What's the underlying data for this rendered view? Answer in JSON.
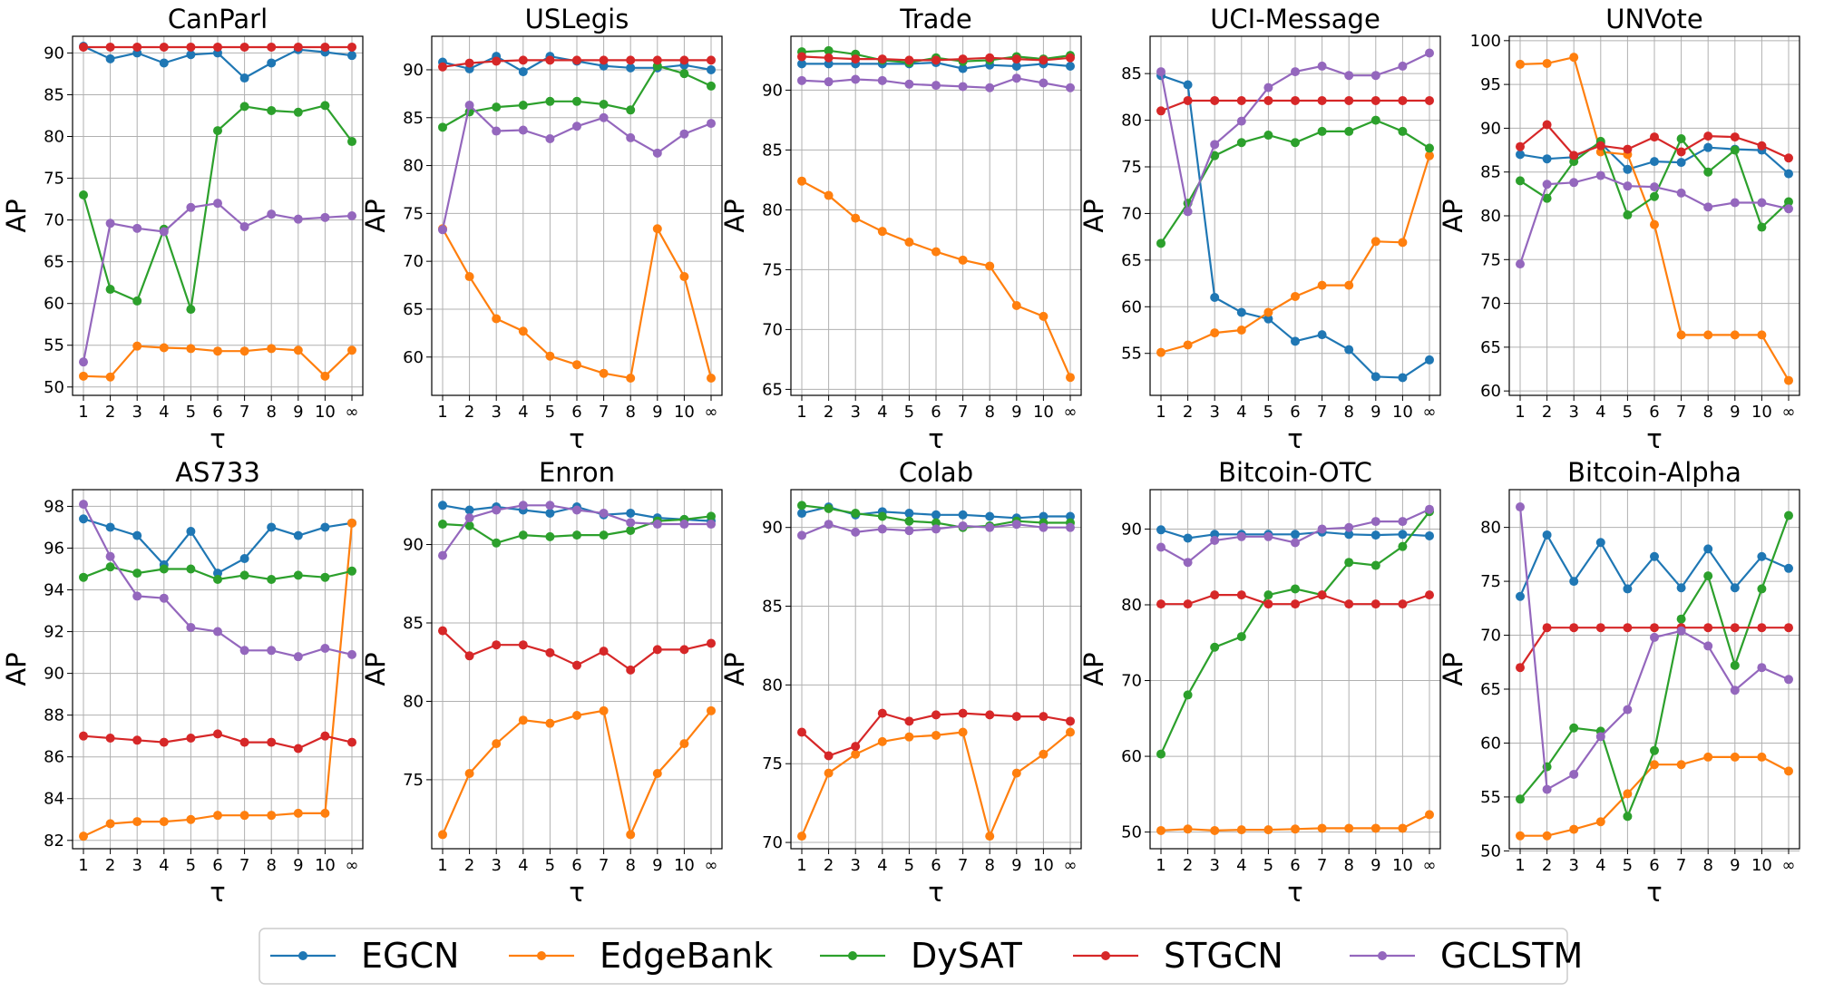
{
  "chart_data": {
    "type": "line",
    "categories": [
      "1",
      "2",
      "3",
      "4",
      "5",
      "6",
      "7",
      "8",
      "9",
      "10",
      "∞"
    ],
    "xlabel": "τ",
    "ylabel": "AP",
    "grid": true,
    "legend_position": "bottom-center",
    "series_names": [
      "EGCN",
      "EdgeBank",
      "DySAT",
      "STGCN",
      "GCLSTM"
    ],
    "series_colors": [
      "#1f77b4",
      "#ff7f0e",
      "#2ca02c",
      "#d62728",
      "#9467bd"
    ],
    "panels": [
      {
        "title": "CanParl",
        "ylim": [
          49,
          92
        ],
        "yticks": [
          50,
          55,
          60,
          65,
          70,
          75,
          80,
          85,
          90
        ],
        "series": [
          [
            90.8,
            89.3,
            90.0,
            88.8,
            89.8,
            90.0,
            87.0,
            88.8,
            90.4,
            90.1,
            89.7
          ],
          [
            51.3,
            51.2,
            54.9,
            54.7,
            54.6,
            54.3,
            54.3,
            54.6,
            54.4,
            51.3,
            54.4
          ],
          [
            73.0,
            61.7,
            60.3,
            68.9,
            59.3,
            80.7,
            83.6,
            83.1,
            82.9,
            83.7,
            79.4
          ],
          [
            90.7,
            90.7,
            90.7,
            90.7,
            90.7,
            90.7,
            90.7,
            90.7,
            90.7,
            90.7,
            90.7
          ],
          [
            53.0,
            69.6,
            69.0,
            68.6,
            71.5,
            72.0,
            69.2,
            70.7,
            70.1,
            70.3,
            70.5
          ]
        ]
      },
      {
        "title": "USLegis",
        "ylim": [
          56,
          93.5
        ],
        "yticks": [
          60,
          65,
          70,
          75,
          80,
          85,
          90
        ],
        "series": [
          [
            90.8,
            90.1,
            91.4,
            89.8,
            91.4,
            90.9,
            90.4,
            90.2,
            90.2,
            90.5,
            90.0
          ],
          [
            73.4,
            68.4,
            64.0,
            62.7,
            60.1,
            59.2,
            58.3,
            57.8,
            73.4,
            68.4,
            57.8
          ],
          [
            84.0,
            85.6,
            86.1,
            86.3,
            86.7,
            86.7,
            86.4,
            85.8,
            90.4,
            89.6,
            88.3
          ],
          [
            90.3,
            90.7,
            90.9,
            91.0,
            91.0,
            91.0,
            91.0,
            91.0,
            91.0,
            91.0,
            91.0
          ],
          [
            73.3,
            86.3,
            83.6,
            83.7,
            82.8,
            84.1,
            85.0,
            82.9,
            81.3,
            83.3,
            84.4
          ]
        ]
      },
      {
        "title": "Trade",
        "ylim": [
          64.5,
          94.5
        ],
        "yticks": [
          65,
          70,
          75,
          80,
          85,
          90
        ],
        "series": [
          [
            92.2,
            92.2,
            92.2,
            92.2,
            92.2,
            92.3,
            91.8,
            92.1,
            92.0,
            92.2,
            92.0
          ],
          [
            82.4,
            81.2,
            79.3,
            78.2,
            77.3,
            76.5,
            75.8,
            75.3,
            72.0,
            71.1,
            66.0
          ],
          [
            93.2,
            93.3,
            93.0,
            92.5,
            92.3,
            92.7,
            92.4,
            92.5,
            92.8,
            92.6,
            92.9
          ],
          [
            92.8,
            92.7,
            92.6,
            92.6,
            92.5,
            92.5,
            92.6,
            92.7,
            92.6,
            92.5,
            92.7
          ],
          [
            90.8,
            90.7,
            90.9,
            90.8,
            90.5,
            90.4,
            90.3,
            90.2,
            91.0,
            90.6,
            90.2
          ]
        ]
      },
      {
        "title": "UCI-Message",
        "ylim": [
          50.5,
          89
        ],
        "yticks": [
          55,
          60,
          65,
          70,
          75,
          80,
          85
        ],
        "series": [
          [
            84.8,
            83.8,
            61.0,
            59.4,
            58.7,
            56.3,
            57.0,
            55.4,
            52.5,
            52.4,
            54.3
          ],
          [
            55.1,
            55.9,
            57.2,
            57.5,
            59.4,
            61.1,
            62.3,
            62.3,
            67.0,
            66.9,
            76.2
          ],
          [
            66.8,
            71.1,
            76.2,
            77.6,
            78.4,
            77.6,
            78.8,
            78.8,
            80.0,
            78.8,
            77.0
          ],
          [
            81.0,
            82.1,
            82.1,
            82.1,
            82.1,
            82.1,
            82.1,
            82.1,
            82.1,
            82.1,
            82.1
          ],
          [
            85.2,
            70.2,
            77.4,
            79.9,
            83.5,
            85.2,
            85.8,
            84.8,
            84.8,
            85.8,
            87.2
          ]
        ]
      },
      {
        "title": "UNVote",
        "ylim": [
          59.5,
          100.5
        ],
        "yticks": [
          60,
          65,
          70,
          75,
          80,
          85,
          90,
          95,
          100
        ],
        "series": [
          [
            87.0,
            86.5,
            86.7,
            88.3,
            85.3,
            86.2,
            86.1,
            87.8,
            87.6,
            87.5,
            84.8
          ],
          [
            97.3,
            97.4,
            98.1,
            87.3,
            87.0,
            79.0,
            66.4,
            66.4,
            66.4,
            66.4,
            61.2
          ],
          [
            84.0,
            82.0,
            86.2,
            88.5,
            80.1,
            82.2,
            88.8,
            85.0,
            87.5,
            78.7,
            81.6
          ],
          [
            87.9,
            90.4,
            86.9,
            88.0,
            87.6,
            89.0,
            87.3,
            89.1,
            89.0,
            88.0,
            86.6
          ],
          [
            74.5,
            83.6,
            83.8,
            84.6,
            83.4,
            83.3,
            82.6,
            81.0,
            81.5,
            81.5,
            80.8
          ]
        ]
      },
      {
        "title": "AS733",
        "ylim": [
          81.6,
          98.8
        ],
        "yticks": [
          82,
          84,
          86,
          88,
          90,
          92,
          94,
          96,
          98
        ],
        "series": [
          [
            97.4,
            97.0,
            96.6,
            95.2,
            96.8,
            94.8,
            95.5,
            97.0,
            96.6,
            97.0,
            97.2
          ],
          [
            82.2,
            82.8,
            82.9,
            82.9,
            83.0,
            83.2,
            83.2,
            83.2,
            83.3,
            83.3,
            97.2
          ],
          [
            94.6,
            95.1,
            94.8,
            95.0,
            95.0,
            94.5,
            94.7,
            94.5,
            94.7,
            94.6,
            94.9
          ],
          [
            87.0,
            86.9,
            86.8,
            86.7,
            86.9,
            87.1,
            86.7,
            86.7,
            86.4,
            87.0,
            86.7
          ],
          [
            98.1,
            95.6,
            93.7,
            93.6,
            92.2,
            92.0,
            91.1,
            91.1,
            90.8,
            91.2,
            90.9
          ]
        ]
      },
      {
        "title": "Enron",
        "ylim": [
          70.6,
          93.5
        ],
        "yticks": [
          75,
          80,
          85,
          90
        ],
        "series": [
          [
            92.5,
            92.2,
            92.4,
            92.2,
            92.0,
            92.4,
            91.9,
            92.0,
            91.7,
            91.6,
            91.5
          ],
          [
            71.5,
            75.4,
            77.3,
            78.8,
            78.6,
            79.1,
            79.4,
            71.5,
            75.4,
            77.3,
            79.4
          ],
          [
            91.3,
            91.2,
            90.1,
            90.6,
            90.5,
            90.6,
            90.6,
            90.9,
            91.5,
            91.6,
            91.8
          ],
          [
            84.5,
            82.9,
            83.6,
            83.6,
            83.1,
            82.3,
            83.2,
            82.0,
            83.3,
            83.3,
            83.7
          ],
          [
            89.3,
            91.7,
            92.2,
            92.5,
            92.5,
            92.2,
            92.0,
            91.4,
            91.3,
            91.3,
            91.3
          ]
        ]
      },
      {
        "title": "Colab",
        "ylim": [
          69.6,
          92.4
        ],
        "yticks": [
          70,
          75,
          80,
          85,
          90
        ],
        "series": [
          [
            90.9,
            91.3,
            90.8,
            91.0,
            90.9,
            90.8,
            90.8,
            90.7,
            90.6,
            90.7,
            90.7
          ],
          [
            70.4,
            74.4,
            75.6,
            76.4,
            76.7,
            76.8,
            77.0,
            70.4,
            74.4,
            75.6,
            77.0
          ],
          [
            91.4,
            91.2,
            90.9,
            90.7,
            90.4,
            90.3,
            90.0,
            90.1,
            90.4,
            90.3,
            90.3
          ],
          [
            77.0,
            75.5,
            76.1,
            78.2,
            77.7,
            78.1,
            78.2,
            78.1,
            78.0,
            78.0,
            77.7
          ],
          [
            89.5,
            90.2,
            89.7,
            89.9,
            89.8,
            89.9,
            90.1,
            90.0,
            90.2,
            90.0,
            90.0
          ]
        ]
      },
      {
        "title": "Bitcoin-OTC",
        "ylim": [
          47.8,
          95.2
        ],
        "yticks": [
          50,
          60,
          70,
          80,
          90
        ],
        "series": [
          [
            89.9,
            88.8,
            89.3,
            89.3,
            89.3,
            89.3,
            89.6,
            89.3,
            89.2,
            89.3,
            89.1
          ],
          [
            50.2,
            50.4,
            50.2,
            50.3,
            50.3,
            50.4,
            50.5,
            50.5,
            50.5,
            50.5,
            52.3
          ],
          [
            60.3,
            68.1,
            74.4,
            75.8,
            81.3,
            82.1,
            81.3,
            85.6,
            85.2,
            87.7,
            92.3
          ],
          [
            80.1,
            80.1,
            81.3,
            81.3,
            80.1,
            80.1,
            81.3,
            80.1,
            80.1,
            80.1,
            81.3
          ],
          [
            87.6,
            85.6,
            88.5,
            89.0,
            89.0,
            88.2,
            90.0,
            90.2,
            91.0,
            91.0,
            92.6
          ]
        ]
      },
      {
        "title": "Bitcoin-Alpha",
        "ylim": [
          50.2,
          83.5
        ],
        "yticks": [
          50,
          55,
          60,
          65,
          70,
          75,
          80
        ],
        "series": [
          [
            73.6,
            79.3,
            75.0,
            78.6,
            74.3,
            77.3,
            74.4,
            78.0,
            74.4,
            77.3,
            76.2
          ],
          [
            51.4,
            51.4,
            52.0,
            52.7,
            55.3,
            58.0,
            58.0,
            58.7,
            58.7,
            58.7,
            57.4
          ],
          [
            54.8,
            57.8,
            61.4,
            61.1,
            53.2,
            59.3,
            71.5,
            75.5,
            67.2,
            74.3,
            81.1
          ],
          [
            67.0,
            70.7,
            70.7,
            70.7,
            70.7,
            70.7,
            70.7,
            70.7,
            70.7,
            70.7,
            70.7
          ],
          [
            81.9,
            55.7,
            57.1,
            60.6,
            63.1,
            69.8,
            70.4,
            69.0,
            64.9,
            67.0,
            65.9
          ]
        ]
      }
    ]
  }
}
